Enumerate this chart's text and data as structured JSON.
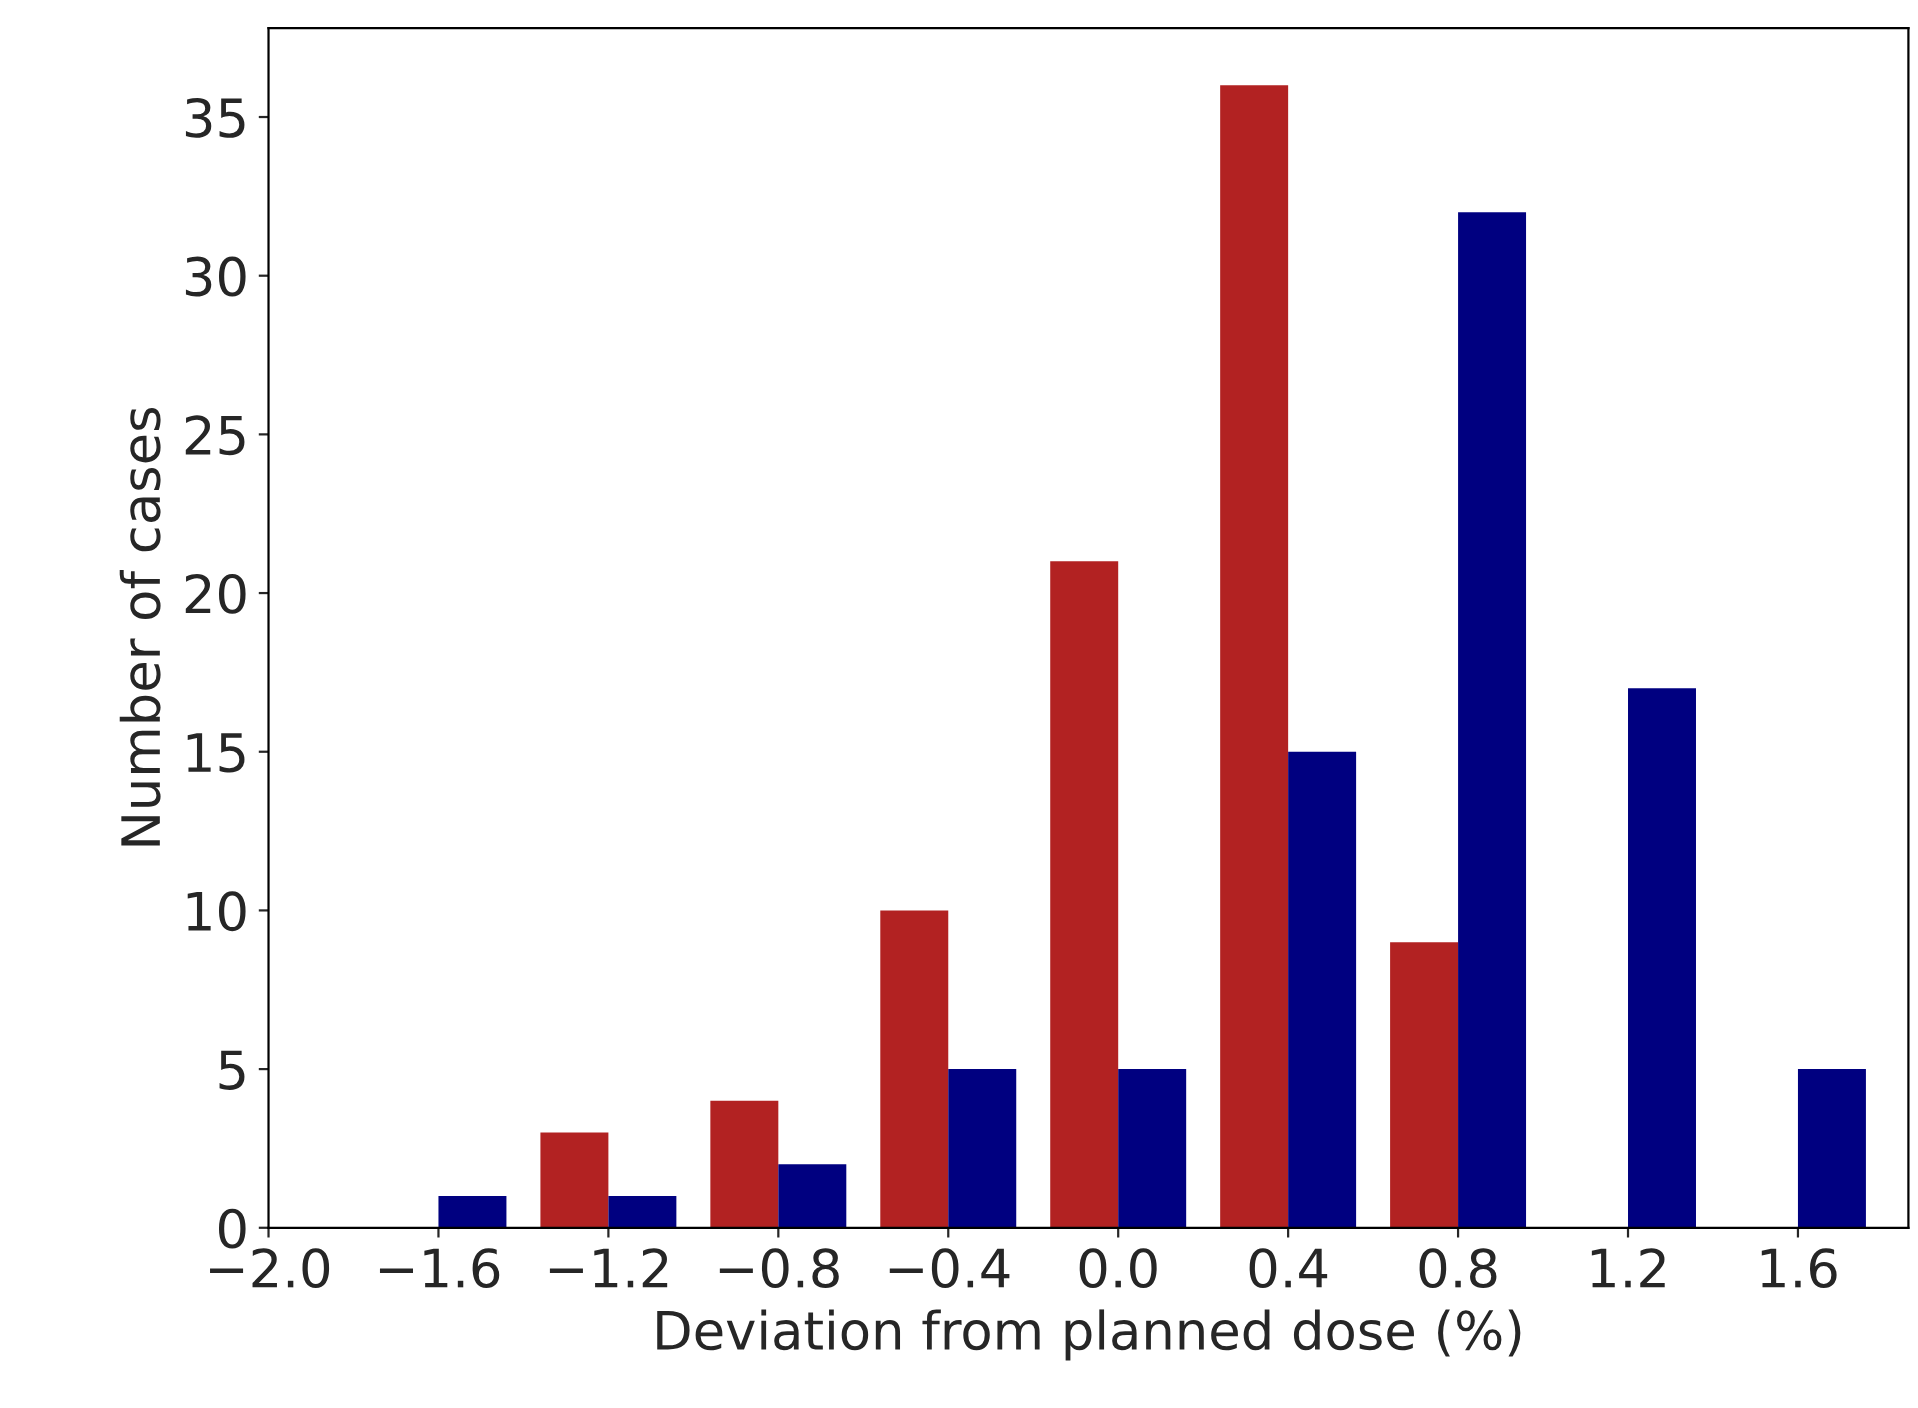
{
  "chart_data": {
    "type": "histogram",
    "xlabel": "Deviation from planned dose (%)",
    "ylabel": "Number of cases",
    "bins": [
      -1.8,
      -1.4,
      -1.0,
      -0.6,
      -0.2,
      0.2,
      0.6,
      1.0,
      1.4,
      1.8
    ],
    "series": [
      {
        "color": "#b22222",
        "values": [
          0,
          3,
          4,
          10,
          21,
          36,
          9,
          0,
          0
        ]
      },
      {
        "color": "#000080",
        "values": [
          1,
          1,
          2,
          5,
          5,
          15,
          32,
          17,
          5
        ]
      }
    ],
    "xlim": [
      -2.0,
      1.86
    ],
    "ylim": [
      0,
      37.8
    ],
    "xticks": [
      {
        "value": -2.0,
        "label": "−2.0"
      },
      {
        "value": -1.6,
        "label": "−1.6"
      },
      {
        "value": -1.2,
        "label": "−1.2"
      },
      {
        "value": -0.8,
        "label": "−0.8"
      },
      {
        "value": -0.4,
        "label": "−0.4"
      },
      {
        "value": 0.0,
        "label": "0.0"
      },
      {
        "value": 0.4,
        "label": "0.4"
      },
      {
        "value": 0.8,
        "label": "0.8"
      },
      {
        "value": 1.2,
        "label": "1.2"
      },
      {
        "value": 1.6,
        "label": "1.6"
      }
    ],
    "yticks": [
      0,
      5,
      10,
      15,
      20,
      25,
      30,
      35
    ],
    "grid": false
  }
}
